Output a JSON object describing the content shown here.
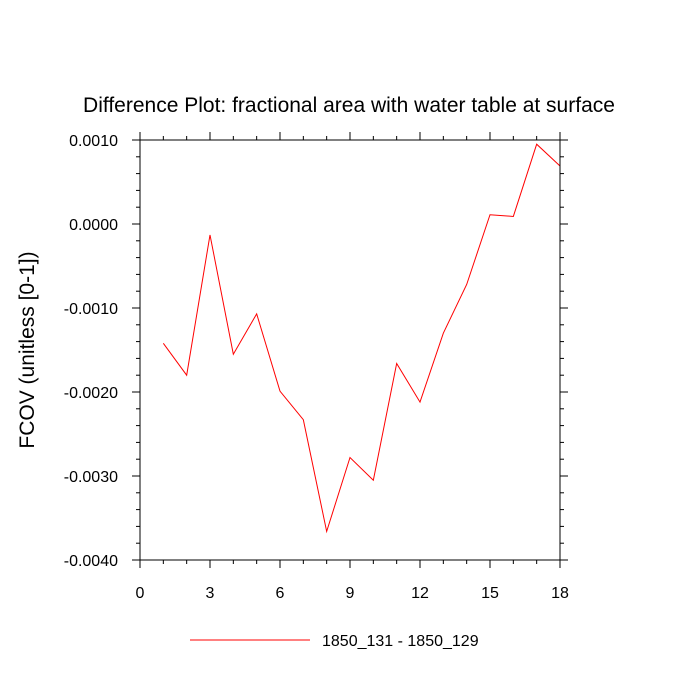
{
  "chart_data": {
    "type": "line",
    "title": "Difference Plot: fractional area with water table at surface",
    "xlabel": "",
    "ylabel": "FCOV  (unitless [0-1])",
    "xlim": [
      0,
      18
    ],
    "ylim": [
      -0.004,
      0.001
    ],
    "xticks": [
      0,
      3,
      6,
      9,
      12,
      15,
      18
    ],
    "xtick_labels": [
      "0",
      "3",
      "6",
      "9",
      "12",
      "15",
      "18"
    ],
    "yticks": [
      0.001,
      0.0,
      -0.001,
      -0.002,
      -0.003,
      -0.004
    ],
    "ytick_labels": [
      "0.0010",
      "0.0000",
      "-0.0010",
      "-0.0020",
      "-0.0030",
      "-0.0040"
    ],
    "grid": false,
    "legend_position": "bottom-center",
    "series": [
      {
        "name": "1850_131 - 1850_129",
        "color": "#ff0000",
        "x": [
          1,
          2,
          3,
          4,
          5,
          6,
          7,
          8,
          9,
          10,
          11,
          12,
          13,
          14,
          15,
          16,
          17,
          18
        ],
        "y": [
          -0.00142,
          -0.0018,
          -0.00013,
          -0.00155,
          -0.00107,
          -0.00199,
          -0.00233,
          -0.00366,
          -0.00278,
          -0.00305,
          -0.00166,
          -0.00212,
          -0.0013,
          -0.00072,
          0.00011,
          9e-05,
          0.00095,
          0.00069
        ]
      }
    ]
  }
}
